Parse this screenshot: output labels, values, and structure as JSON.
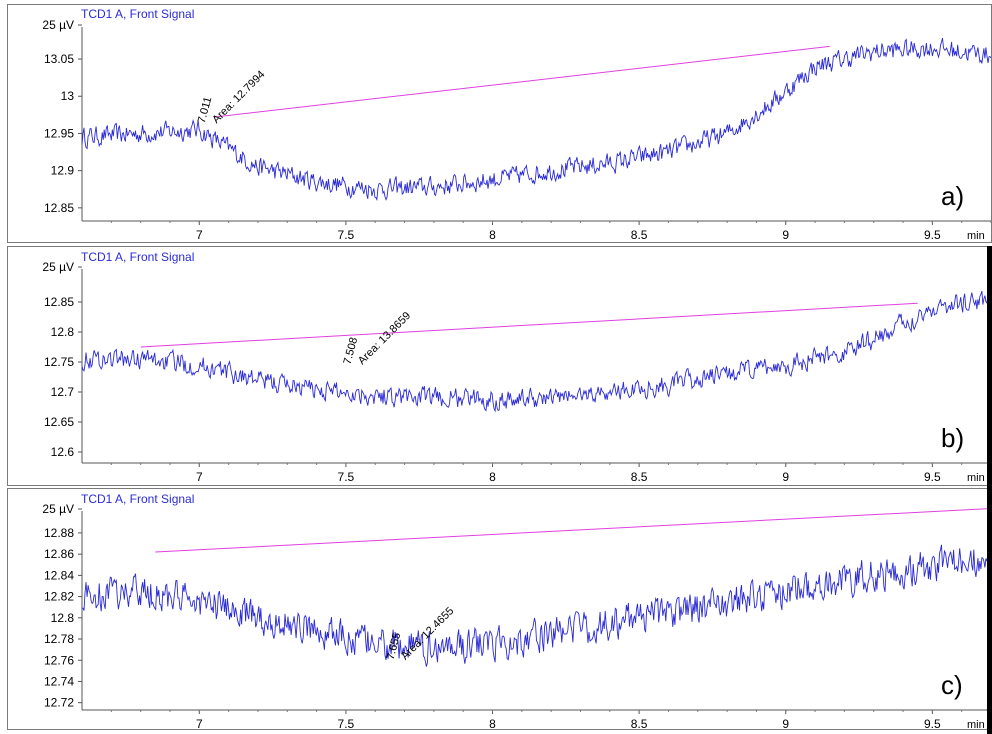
{
  "chart_data": [
    {
      "type": "line",
      "title": "TCD1 A, Front Signal",
      "panel_label": "a)",
      "y_unit_label": "25 µV",
      "x_unit_label": "min",
      "xlim": [
        6.6,
        9.7
      ],
      "ylim": [
        12.835,
        13.085
      ],
      "x_ticks": [
        7,
        7.5,
        8,
        8.5,
        9,
        9.5
      ],
      "x_tick_labels": [
        "7",
        "7.5",
        "8",
        "8.5",
        "9",
        "9.5"
      ],
      "y_ticks": [
        12.85,
        12.9,
        12.95,
        13,
        13.05
      ],
      "y_tick_labels": [
        "12.85",
        "12.9",
        "12.95",
        "13",
        "13.05"
      ],
      "series": [
        {
          "color": "#2b2bd6",
          "x": [
            6.6,
            6.8,
            7.0,
            7.1,
            7.2,
            7.4,
            7.6,
            7.8,
            8.0,
            8.2,
            8.4,
            8.6,
            8.8,
            8.95,
            9.1,
            9.3,
            9.5,
            9.7
          ],
          "y": [
            12.945,
            12.95,
            12.955,
            12.93,
            12.905,
            12.885,
            12.875,
            12.878,
            12.888,
            12.9,
            12.91,
            12.925,
            12.95,
            12.99,
            13.04,
            13.06,
            13.065,
            13.055
          ],
          "noise": 0.012
        }
      ],
      "baseline": {
        "color": "#e040e0",
        "x": [
          7.05,
          9.15
        ],
        "y": [
          12.972,
          13.067
        ]
      },
      "peak": {
        "time_label": "7.011",
        "area_label": "Area: 12.7994",
        "x": 7.011,
        "y": 12.963
      }
    },
    {
      "type": "line",
      "title": "TCD1 A, Front Signal",
      "panel_label": "b)",
      "y_unit_label": "25 µV",
      "x_unit_label": "min",
      "xlim": [
        6.6,
        9.7
      ],
      "ylim": [
        12.585,
        12.895
      ],
      "x_ticks": [
        7,
        7.5,
        8,
        8.5,
        9,
        9.5
      ],
      "x_tick_labels": [
        "7",
        "7.5",
        "8",
        "8.5",
        "9",
        "9.5"
      ],
      "y_ticks": [
        12.6,
        12.65,
        12.7,
        12.75,
        12.8,
        12.85
      ],
      "y_tick_labels": [
        "12.6",
        "12.65",
        "12.7",
        "12.75",
        "12.8",
        "12.85"
      ],
      "series": [
        {
          "color": "#2b2bd6",
          "x": [
            6.6,
            6.8,
            7.0,
            7.2,
            7.4,
            7.6,
            7.8,
            8.0,
            8.2,
            8.4,
            8.6,
            8.8,
            9.0,
            9.2,
            9.35,
            9.5,
            9.7
          ],
          "y": [
            12.755,
            12.755,
            12.745,
            12.72,
            12.705,
            12.695,
            12.69,
            12.688,
            12.69,
            12.7,
            12.712,
            12.73,
            12.745,
            12.765,
            12.8,
            12.84,
            12.855
          ],
          "noise": 0.015
        }
      ],
      "baseline": {
        "color": "#e040e0",
        "x": [
          6.8,
          9.45
        ],
        "y": [
          12.775,
          12.848
        ]
      },
      "peak": {
        "time_label": "7.508",
        "area_label": "Area: 13.8659",
        "x": 7.508,
        "y": 12.745
      }
    },
    {
      "type": "line",
      "title": "TCD1 A, Front Signal",
      "panel_label": "c)",
      "y_unit_label": "25 µV",
      "x_unit_label": "min",
      "xlim": [
        6.6,
        9.7
      ],
      "ylim": [
        12.715,
        12.895
      ],
      "x_ticks": [
        7,
        7.5,
        8,
        8.5,
        9,
        9.5
      ],
      "x_tick_labels": [
        "7",
        "7.5",
        "8",
        "8.5",
        "9",
        "9.5"
      ],
      "y_ticks": [
        12.72,
        12.74,
        12.76,
        12.78,
        12.8,
        12.82,
        12.84,
        12.86,
        12.88
      ],
      "y_tick_labels": [
        "12.72",
        "12.74",
        "12.76",
        "12.78",
        "12.8",
        "12.82",
        "12.84",
        "12.86",
        "12.88"
      ],
      "series": [
        {
          "color": "#2b2bd6",
          "x": [
            6.6,
            6.8,
            7.0,
            7.2,
            7.4,
            7.6,
            7.8,
            8.0,
            8.2,
            8.4,
            8.6,
            8.8,
            9.0,
            9.2,
            9.4,
            9.6,
            9.7
          ],
          "y": [
            12.82,
            12.825,
            12.815,
            12.8,
            12.788,
            12.775,
            12.772,
            12.775,
            12.785,
            12.795,
            12.805,
            12.815,
            12.825,
            12.835,
            12.845,
            12.852,
            12.855
          ],
          "noise": 0.014
        }
      ],
      "baseline": {
        "color": "#e040e0",
        "x": [
          6.85,
          9.7
        ],
        "y": [
          12.862,
          12.903
        ]
      },
      "peak": {
        "time_label": "7.655",
        "area_label": "Area: 12.4655",
        "x": 7.655,
        "y": 12.76
      }
    }
  ]
}
